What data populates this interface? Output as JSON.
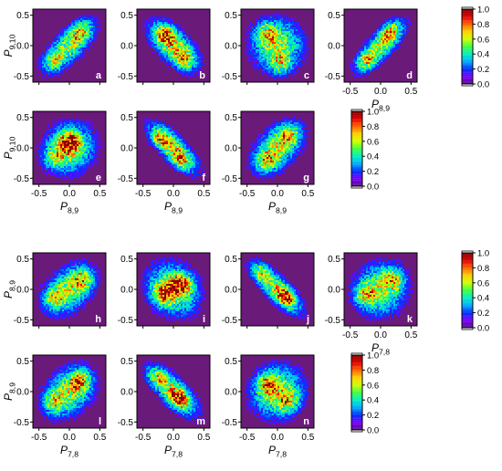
{
  "colormap": [
    "#5a0a8a",
    "#7a00ff",
    "#0030ff",
    "#00b0ff",
    "#00f0c0",
    "#40ff40",
    "#d0ff00",
    "#ffd000",
    "#ff6000",
    "#e00000",
    "#800000"
  ],
  "background_color": "#6a1a78",
  "colorbar_ticks": [
    "0.0",
    "0.2",
    "0.4",
    "0.6",
    "0.8",
    "1.0"
  ],
  "chart_data": [
    {
      "type": "heatmap",
      "panel": "a",
      "xlabel": "",
      "ylabel": "P_{9,10}",
      "xlim": [
        -0.6,
        0.6
      ],
      "ylim": [
        -0.6,
        0.6
      ],
      "xticks": [],
      "yticks": [
        "-0.5",
        "0.0",
        "0.5"
      ],
      "shape": "two lobes along positive diagonal",
      "centers": [
        [
          -0.3,
          -0.3
        ],
        [
          0.2,
          0.28
        ]
      ],
      "corr": 0.75,
      "spread": 0.2
    },
    {
      "type": "heatmap",
      "panel": "b",
      "xlabel": "",
      "ylabel": "",
      "xlim": [
        -0.6,
        0.6
      ],
      "ylim": [
        -0.6,
        0.6
      ],
      "xticks": [],
      "yticks": [
        "-0.5",
        "0.0",
        "0.5"
      ],
      "shape": "ellipse along negative diagonal, hollow",
      "centers": [
        [
          -0.15,
          0.2
        ],
        [
          0.2,
          -0.25
        ]
      ],
      "corr": -0.7,
      "spread": 0.22
    },
    {
      "type": "heatmap",
      "panel": "c",
      "xlabel": "",
      "ylabel": "",
      "xlim": [
        -0.6,
        0.6
      ],
      "ylim": [
        -0.6,
        0.6
      ],
      "xticks": [],
      "yticks": [
        "-0.5",
        "0.0",
        "0.5"
      ],
      "shape": "broad ring",
      "centers": [
        [
          0.05,
          -0.35
        ],
        [
          -0.2,
          0.25
        ]
      ],
      "corr": -0.3,
      "spread": 0.3
    },
    {
      "type": "heatmap",
      "panel": "d",
      "xlabel": "P_{8,9}",
      "ylabel": "",
      "xlim": [
        -0.6,
        0.6
      ],
      "ylim": [
        -0.6,
        0.6
      ],
      "xticks": [
        "-0.5",
        "0.0",
        "0.5"
      ],
      "yticks": [
        "-0.5",
        "0.0",
        "0.5"
      ],
      "shape": "narrow ellipse along positive diagonal",
      "centers": [
        [
          -0.25,
          -0.3
        ],
        [
          0.15,
          0.28
        ]
      ],
      "corr": 0.8,
      "spread": 0.17
    },
    {
      "type": "heatmap",
      "panel": "e",
      "xlabel": "P_{8,9}",
      "ylabel": "P_{9,10}",
      "xlim": [
        -0.6,
        0.6
      ],
      "ylim": [
        -0.6,
        0.6
      ],
      "xticks": [
        "-0.5",
        "0.0",
        "0.5"
      ],
      "yticks": [
        "-0.5",
        "0.0",
        "0.5"
      ],
      "shape": "broad blob",
      "centers": [
        [
          -0.3,
          -0.2
        ],
        [
          0.0,
          0.1
        ]
      ],
      "corr": 0.3,
      "spread": 0.28
    },
    {
      "type": "heatmap",
      "panel": "f",
      "xlabel": "P_{8,9}",
      "ylabel": "",
      "xlim": [
        -0.6,
        0.6
      ],
      "ylim": [
        -0.6,
        0.6
      ],
      "xticks": [
        "-0.5",
        "0.0",
        "0.5"
      ],
      "yticks": [
        "-0.5",
        "0.0",
        "0.5"
      ],
      "shape": "narrow band along negative diagonal",
      "centers": [
        [
          -0.25,
          0.15
        ],
        [
          0.1,
          -0.25
        ]
      ],
      "corr": -0.85,
      "spread": 0.18
    },
    {
      "type": "heatmap",
      "panel": "g",
      "xlabel": "P_{8,9}",
      "ylabel": "",
      "xlim": [
        -0.6,
        0.6
      ],
      "ylim": [
        -0.6,
        0.6
      ],
      "xticks": [
        "-0.5",
        "0.0",
        "0.5"
      ],
      "yticks": [
        "-0.5",
        "0.0",
        "0.5"
      ],
      "shape": "ellipse along positive diagonal",
      "centers": [
        [
          -0.2,
          -0.25
        ],
        [
          0.2,
          0.25
        ]
      ],
      "corr": 0.6,
      "spread": 0.25
    },
    {
      "type": "heatmap",
      "panel": "h",
      "xlabel": "",
      "ylabel": "P_{8,9}",
      "xlim": [
        -0.6,
        0.6
      ],
      "ylim": [
        -0.6,
        0.6
      ],
      "xticks": [],
      "yticks": [
        "-0.5",
        "0.0",
        "0.5"
      ],
      "shape": "ellipse along positive diagonal",
      "centers": [
        [
          -0.3,
          -0.15
        ],
        [
          0.25,
          0.2
        ]
      ],
      "corr": 0.5,
      "spread": 0.25
    },
    {
      "type": "heatmap",
      "panel": "i",
      "xlabel": "",
      "ylabel": "",
      "xlim": [
        -0.6,
        0.6
      ],
      "ylim": [
        -0.6,
        0.6
      ],
      "xticks": [],
      "yticks": [
        "-0.5",
        "0.0",
        "0.5"
      ],
      "shape": "broad ring",
      "centers": [
        [
          -0.2,
          -0.1
        ],
        [
          0.15,
          0.1
        ]
      ],
      "corr": 0.1,
      "spread": 0.3
    },
    {
      "type": "heatmap",
      "panel": "j",
      "xlabel": "",
      "ylabel": "",
      "xlim": [
        -0.6,
        0.6
      ],
      "ylim": [
        -0.6,
        0.6
      ],
      "xticks": [],
      "yticks": [
        "-0.5",
        "0.0",
        "0.5"
      ],
      "shape": "narrow band along negative diagonal",
      "centers": [
        [
          -0.3,
          0.3
        ],
        [
          0.15,
          -0.15
        ]
      ],
      "corr": -0.9,
      "spread": 0.18
    },
    {
      "type": "heatmap",
      "panel": "k",
      "xlabel": "P_{7,8}",
      "ylabel": "",
      "xlim": [
        -0.6,
        0.6
      ],
      "ylim": [
        -0.6,
        0.6
      ],
      "xticks": [
        "-0.5",
        "0.0",
        "0.5"
      ],
      "yticks": [
        "-0.5",
        "0.0",
        "0.5"
      ],
      "shape": "tilted ring",
      "centers": [
        [
          -0.3,
          -0.1
        ],
        [
          0.25,
          0.2
        ]
      ],
      "corr": 0.35,
      "spread": 0.3
    },
    {
      "type": "heatmap",
      "panel": "l",
      "xlabel": "P_{7,8}",
      "ylabel": "P_{8,9}",
      "xlim": [
        -0.6,
        0.6
      ],
      "ylim": [
        -0.6,
        0.6
      ],
      "xticks": [
        "-0.5",
        "0.0",
        "0.5"
      ],
      "yticks": [
        "-0.5",
        "0.0",
        "0.5"
      ],
      "shape": "ellipse along positive diagonal",
      "centers": [
        [
          -0.3,
          -0.2
        ],
        [
          0.2,
          0.2
        ]
      ],
      "corr": 0.5,
      "spread": 0.27
    },
    {
      "type": "heatmap",
      "panel": "m",
      "xlabel": "P_{7,8}",
      "ylabel": "",
      "xlim": [
        -0.6,
        0.6
      ],
      "ylim": [
        -0.6,
        0.6
      ],
      "xticks": [
        "-0.5",
        "0.0",
        "0.5"
      ],
      "yticks": [
        "-0.5",
        "0.0",
        "0.5"
      ],
      "shape": "narrow band along negative diagonal",
      "centers": [
        [
          -0.3,
          0.25
        ],
        [
          0.1,
          -0.15
        ]
      ],
      "corr": -0.85,
      "spread": 0.2
    },
    {
      "type": "heatmap",
      "panel": "n",
      "xlabel": "P_{7,8}",
      "ylabel": "",
      "xlim": [
        -0.6,
        0.6
      ],
      "ylim": [
        -0.6,
        0.6
      ],
      "xticks": [
        "-0.5",
        "0.0",
        "0.5"
      ],
      "yticks": [
        "-0.5",
        "0.0",
        "0.5"
      ],
      "shape": "broad ring",
      "centers": [
        [
          -0.2,
          0.15
        ],
        [
          0.2,
          -0.2
        ]
      ],
      "corr": -0.2,
      "spread": 0.3
    }
  ]
}
